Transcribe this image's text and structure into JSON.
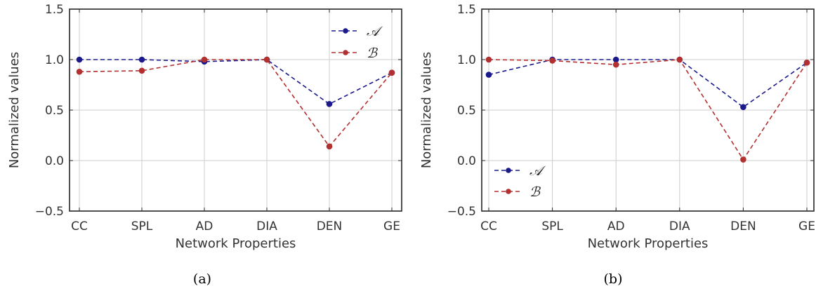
{
  "chart_data": [
    {
      "type": "line",
      "caption": "(a)",
      "categories": [
        "CC",
        "SPL",
        "AD",
        "DIA",
        "DEN",
        "GE"
      ],
      "xlabel": "Network Properties",
      "ylabel": "Normalized values",
      "ylim": [
        -0.5,
        1.5
      ],
      "yticks": [
        "−0.5",
        "0.0",
        "0.5",
        "1.0",
        "1.5"
      ],
      "yticks_values": [
        -0.5,
        0.0,
        0.5,
        1.0,
        1.5
      ],
      "grid": true,
      "legend_position": "top-right",
      "series": [
        {
          "name": "𝒜",
          "color": "#1a1a8c",
          "line_style": "dashed",
          "marker": "circle",
          "values": [
            1.0,
            1.0,
            0.98,
            1.0,
            0.56,
            0.87
          ]
        },
        {
          "name": "ℬ",
          "color": "#b23030",
          "line_style": "dashed",
          "marker": "circle",
          "values": [
            0.88,
            0.89,
            1.0,
            1.0,
            0.14,
            0.87
          ]
        }
      ]
    },
    {
      "type": "line",
      "caption": "(b)",
      "categories": [
        "CC",
        "SPL",
        "AD",
        "DIA",
        "DEN",
        "GE"
      ],
      "xlabel": "Network Properties",
      "ylabel": "Normalized values",
      "ylim": [
        -0.5,
        1.5
      ],
      "yticks": [
        "−0.5",
        "0.0",
        "0.5",
        "1.0",
        "1.5"
      ],
      "yticks_values": [
        -0.5,
        0.0,
        0.5,
        1.0,
        1.5
      ],
      "grid": true,
      "legend_position": "bottom-left",
      "series": [
        {
          "name": "𝒜",
          "color": "#1a1a8c",
          "line_style": "dashed",
          "marker": "circle",
          "values": [
            0.85,
            1.0,
            1.0,
            1.0,
            0.53,
            0.97
          ]
        },
        {
          "name": "ℬ",
          "color": "#b23030",
          "line_style": "dashed",
          "marker": "circle",
          "values": [
            1.0,
            0.99,
            0.95,
            1.0,
            0.01,
            0.97
          ]
        }
      ]
    }
  ]
}
